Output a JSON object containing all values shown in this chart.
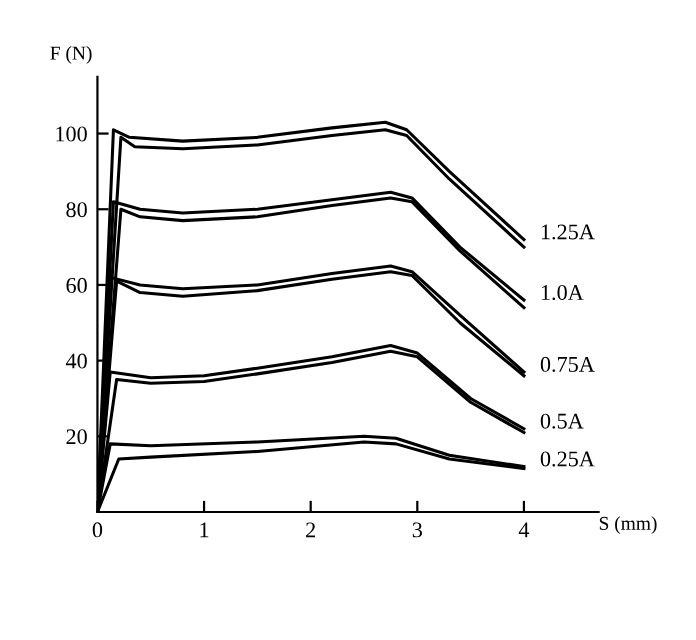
{
  "chart_data": {
    "type": "line",
    "xlabel": "S (mm)",
    "ylabel": "F (N)",
    "xlim": [
      0,
      4.7
    ],
    "ylim": [
      0,
      115
    ],
    "xticks": [
      0,
      1,
      2,
      3,
      4
    ],
    "yticks": [
      20,
      40,
      60,
      80,
      100
    ],
    "grid": false,
    "legend": false,
    "marker": "none",
    "line_style": "solid",
    "series": [
      {
        "name": "1.25A",
        "color": "#000000",
        "x": [
          0,
          0.15,
          0.3,
          0.8,
          1.5,
          2.2,
          2.7,
          2.9,
          3.3,
          4
        ],
        "values": [
          0,
          101,
          99,
          98,
          99,
          101.5,
          103,
          101,
          90,
          72
        ]
      },
      {
        "color": "#000000",
        "x": [
          0,
          0.22,
          0.35,
          0.8,
          1.5,
          2.2,
          2.7,
          2.9,
          3.3,
          4
        ],
        "values": [
          0,
          99,
          96.5,
          96,
          97,
          99.5,
          101,
          99.5,
          88,
          70
        ]
      },
      {
        "name": "1.0A",
        "color": "#000000",
        "x": [
          0,
          0.15,
          0.4,
          0.8,
          1.5,
          2.2,
          2.75,
          2.95,
          3.4,
          4
        ],
        "values": [
          0,
          82,
          80,
          79,
          80,
          82.5,
          84.5,
          83,
          70,
          56
        ]
      },
      {
        "color": "#000000",
        "x": [
          0,
          0.22,
          0.4,
          0.8,
          1.5,
          2.2,
          2.75,
          2.95,
          3.4,
          4
        ],
        "values": [
          0,
          80,
          78,
          77,
          78,
          81,
          83,
          82,
          69,
          54
        ]
      },
      {
        "name": "0.75A",
        "color": "#000000",
        "x": [
          0,
          0.12,
          0.4,
          0.8,
          1.5,
          2.2,
          2.75,
          2.95,
          3.4,
          4
        ],
        "values": [
          0,
          62,
          60,
          59,
          60,
          63,
          65,
          63.5,
          52,
          37
        ]
      },
      {
        "color": "#000000",
        "x": [
          0,
          0.18,
          0.4,
          0.8,
          1.5,
          2.2,
          2.75,
          2.95,
          3.4,
          4
        ],
        "values": [
          0,
          61,
          58,
          57,
          58.5,
          61.5,
          63.5,
          62.5,
          50,
          36
        ]
      },
      {
        "name": "0.5A",
        "color": "#000000",
        "x": [
          0,
          0.12,
          0.5,
          1,
          1.5,
          2.2,
          2.75,
          3,
          3.5,
          4
        ],
        "values": [
          0,
          37,
          35.5,
          36,
          38,
          41,
          44,
          42,
          30,
          22
        ]
      },
      {
        "color": "#000000",
        "x": [
          0,
          0.18,
          0.5,
          1,
          1.5,
          2.2,
          2.75,
          3,
          3.5,
          4
        ],
        "values": [
          0,
          35,
          34,
          34.5,
          36.5,
          39.5,
          42.5,
          41,
          29,
          21
        ]
      },
      {
        "name": "0.25A",
        "color": "#000000",
        "x": [
          0,
          0.12,
          0.5,
          1.5,
          2.5,
          2.8,
          3.3,
          4
        ],
        "values": [
          0,
          18,
          17.5,
          18.5,
          20,
          19.5,
          15,
          12
        ]
      },
      {
        "color": "#000000",
        "x": [
          0,
          0.2,
          0.5,
          1.5,
          2.5,
          2.8,
          3.3,
          4
        ],
        "values": [
          0,
          14,
          14.5,
          16,
          18.5,
          18,
          14,
          11.5
        ]
      }
    ]
  }
}
